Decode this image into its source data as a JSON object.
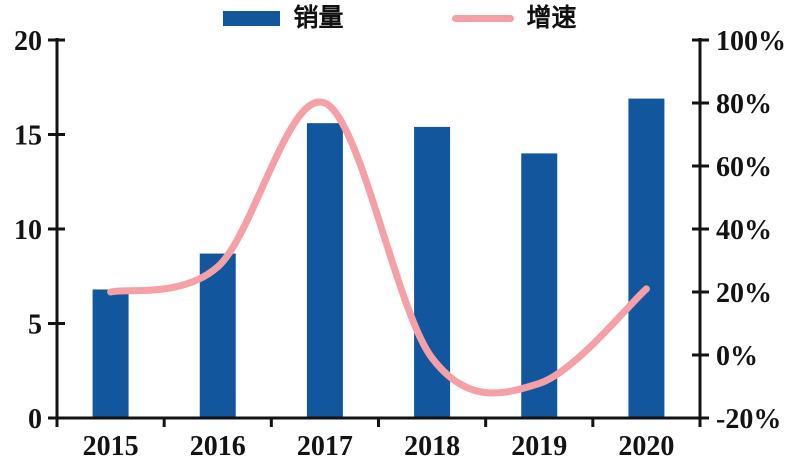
{
  "legend": {
    "sales_label": "销量",
    "growth_label": "增速"
  },
  "colors": {
    "bar": "#12579E",
    "line": "#F5A0A6",
    "axis": "#131313",
    "background": "#FFFFFF"
  },
  "chart_data": {
    "type": "bar+line",
    "title": "",
    "xlabel": "",
    "ylabel": "",
    "categories": [
      "2015",
      "2016",
      "2017",
      "2018",
      "2019",
      "2020"
    ],
    "series": [
      {
        "name": "销量",
        "type": "bar",
        "axis": "left",
        "values": [
          6.8,
          8.7,
          15.6,
          15.4,
          14.0,
          16.9
        ]
      },
      {
        "name": "增速",
        "type": "line",
        "axis": "right",
        "unit": "%",
        "values": [
          20,
          28,
          80,
          -1,
          -9,
          21
        ]
      }
    ],
    "left_axis": {
      "min": 0,
      "max": 20,
      "tick_values": [
        0,
        5,
        10,
        15,
        20
      ],
      "tick_labels": [
        "0",
        "5",
        "10",
        "15",
        "20"
      ]
    },
    "right_axis": {
      "min": -20,
      "max": 100,
      "tick_values": [
        -20,
        0,
        20,
        40,
        60,
        80,
        100
      ],
      "tick_labels": [
        "-20%",
        "0%",
        "20%",
        "40%",
        "60%",
        "80%",
        "100%"
      ]
    },
    "legend_position": "top",
    "grid": false
  }
}
